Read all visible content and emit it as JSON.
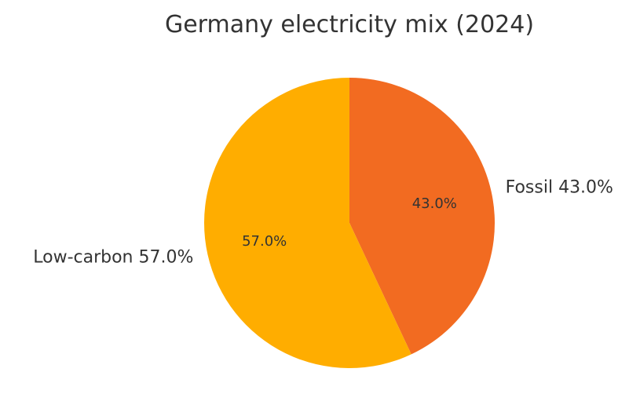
{
  "chart_data": {
    "type": "pie",
    "title": "Germany electricity mix (2024)",
    "slices": [
      {
        "label": "Fossil",
        "value": 43.0,
        "color": "#f26b21",
        "outer_label": "Fossil 43.0%",
        "pct_label": "43.0%"
      },
      {
        "label": "Low-carbon",
        "value": 57.0,
        "color": "#ffad00",
        "outer_label": "Low-carbon 57.0%",
        "pct_label": "57.0%"
      }
    ],
    "start": "12 o'clock",
    "direction": "clockwise",
    "legend": "none"
  }
}
